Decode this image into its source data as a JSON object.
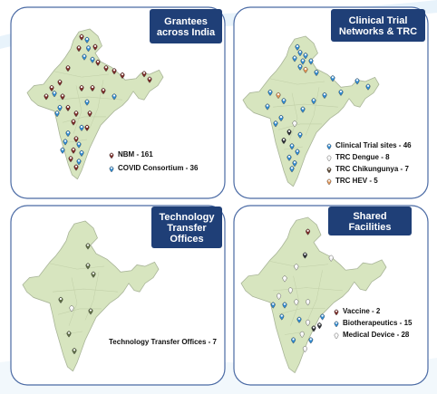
{
  "colors": {
    "panel_border": "#4a6aa4",
    "title_bg": "#1f3f77",
    "map_fill": "#d7e5bf",
    "map_stroke": "#a9b598",
    "maroon": "#7a2a26",
    "blue": "#2f8ad1",
    "olive": "#5e6d45",
    "white": "#f4f4f4",
    "orange": "#e19557",
    "dark": "#2b2f34"
  },
  "panels": [
    {
      "id": "grantees",
      "title_lines": [
        "Grantees",
        "across India"
      ],
      "legend": [
        {
          "label": "NBM - 161",
          "icon": "marker-maroon-icon",
          "color": "#7a2a26"
        },
        {
          "label": "COVID Consortium - 36",
          "icon": "marker-blue-icon",
          "color": "#2f8ad1"
        }
      ]
    },
    {
      "id": "clinical",
      "title_lines": [
        "Clinical Trial",
        "Networks & TRC"
      ],
      "legend": [
        {
          "label": "Clinical Trial sites - 46",
          "icon": "marker-blue-icon",
          "color": "#2f8ad1"
        },
        {
          "label": "TRC Dengue - 8",
          "icon": "marker-white-icon",
          "color": "#f4f4f4"
        },
        {
          "label": "TRC Chikungunya - 7",
          "icon": "marker-dark-icon",
          "color": "#5e4a36"
        },
        {
          "label": "TRC HEV - 5",
          "icon": "marker-orange-icon",
          "color": "#e19557"
        }
      ]
    },
    {
      "id": "tto",
      "title_lines": [
        "Technology",
        "Transfer",
        "Offices"
      ],
      "legend": [
        {
          "label": "Technology Transfer Offices - 7",
          "icon": "",
          "color": "#5e6d45"
        }
      ]
    },
    {
      "id": "shared",
      "title_lines": [
        "Shared",
        "Facilities"
      ],
      "legend": [
        {
          "label": "Vaccine - 2",
          "icon": "marker-maroon-icon",
          "color": "#7a2a26"
        },
        {
          "label": "Biotherapeutics - 15",
          "icon": "marker-blue-icon",
          "color": "#2f8ad1"
        },
        {
          "label": "Medical Device - 28",
          "icon": "marker-white-icon",
          "color": "#f4f4f4"
        }
      ]
    }
  ]
}
